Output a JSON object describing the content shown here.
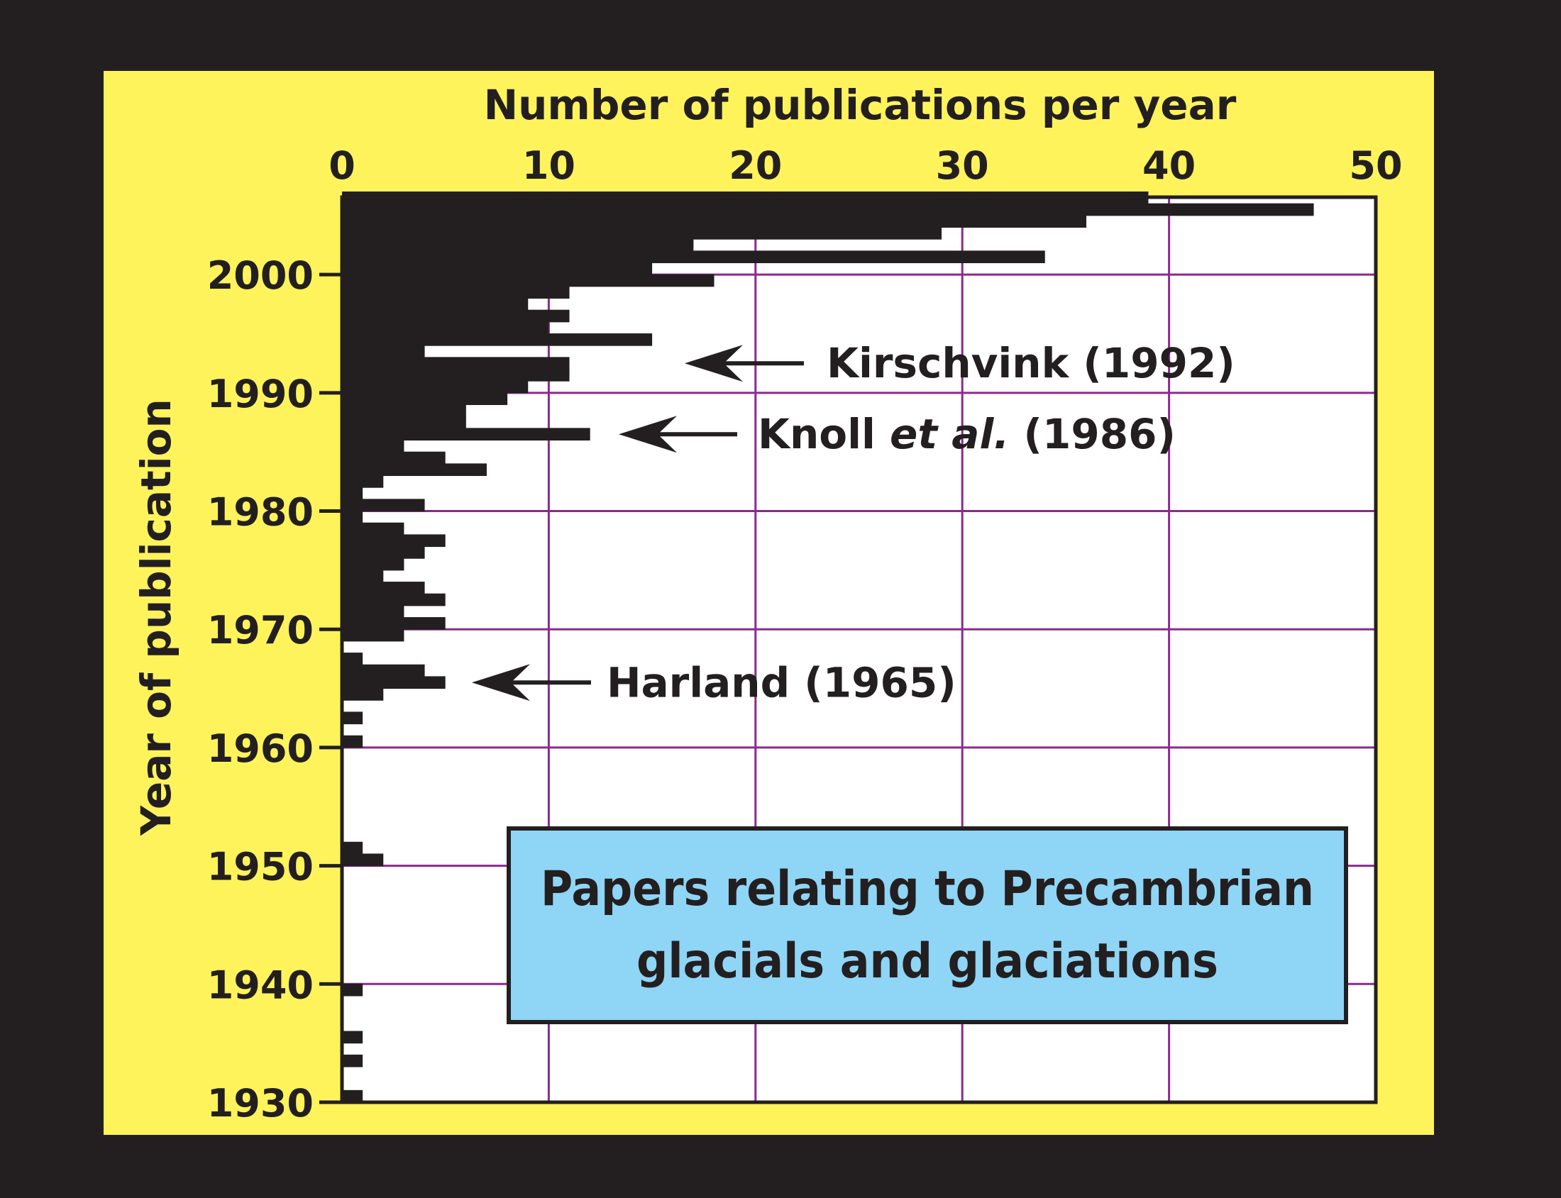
{
  "colors": {
    "outer_background": "#231f20",
    "panel_background": "#fff35c",
    "plot_background": "#ffffff",
    "bars": "#231f20",
    "gridlines": "#8b2a8e",
    "title_box_fill": "#8fd5f5"
  },
  "chart_data": {
    "type": "bar",
    "orientation": "horizontal",
    "title": "Papers relating to Precambrian glacials and glaciations",
    "title_lines": [
      "Papers relating to Precambrian",
      "glacials and glaciations"
    ],
    "xlabel": "Number of publications per year",
    "ylabel": "Year of publication",
    "xlim": [
      0,
      50
    ],
    "ylim": [
      1930,
      2007
    ],
    "xticks": [
      0,
      10,
      20,
      30,
      40,
      50
    ],
    "yticks": [
      1930,
      1940,
      1950,
      1960,
      1970,
      1980,
      1990,
      2000
    ],
    "x_axis_position": "top",
    "grid": true,
    "years": [
      1930,
      1931,
      1932,
      1933,
      1934,
      1935,
      1936,
      1937,
      1938,
      1939,
      1940,
      1941,
      1942,
      1943,
      1944,
      1945,
      1946,
      1947,
      1948,
      1949,
      1950,
      1951,
      1952,
      1953,
      1954,
      1955,
      1956,
      1957,
      1958,
      1959,
      1960,
      1961,
      1962,
      1963,
      1964,
      1965,
      1966,
      1967,
      1968,
      1969,
      1970,
      1971,
      1972,
      1973,
      1974,
      1975,
      1976,
      1977,
      1978,
      1979,
      1980,
      1981,
      1982,
      1983,
      1984,
      1985,
      1986,
      1987,
      1988,
      1989,
      1990,
      1991,
      1992,
      1993,
      1994,
      1995,
      1996,
      1997,
      1998,
      1999,
      2000,
      2001,
      2002,
      2003,
      2004,
      2005,
      2006
    ],
    "values": [
      1,
      0,
      0,
      1,
      0,
      1,
      0,
      0,
      0,
      1,
      0,
      0,
      0,
      0,
      0,
      0,
      0,
      0,
      0,
      0,
      2,
      1,
      0,
      0,
      0,
      0,
      0,
      0,
      0,
      0,
      1,
      0,
      1,
      0,
      2,
      5,
      4,
      1,
      0,
      3,
      5,
      3,
      5,
      4,
      2,
      3,
      4,
      5,
      3,
      1,
      4,
      1,
      2,
      7,
      5,
      3,
      12,
      6,
      6,
      8,
      9,
      11,
      11,
      4,
      15,
      10,
      11,
      9,
      11,
      18,
      15,
      34,
      17,
      29,
      36,
      47,
      39
    ],
    "annotations": [
      {
        "year": 1992,
        "text_before": "Kirschvink (1992)",
        "text_italic": "",
        "text_after": ""
      },
      {
        "year": 1986,
        "text_before": "Knoll ",
        "text_italic": "et al.",
        "text_after": " (1986)"
      },
      {
        "year": 1965,
        "text_before": "Harland (1965)",
        "text_italic": "",
        "text_after": ""
      }
    ]
  }
}
